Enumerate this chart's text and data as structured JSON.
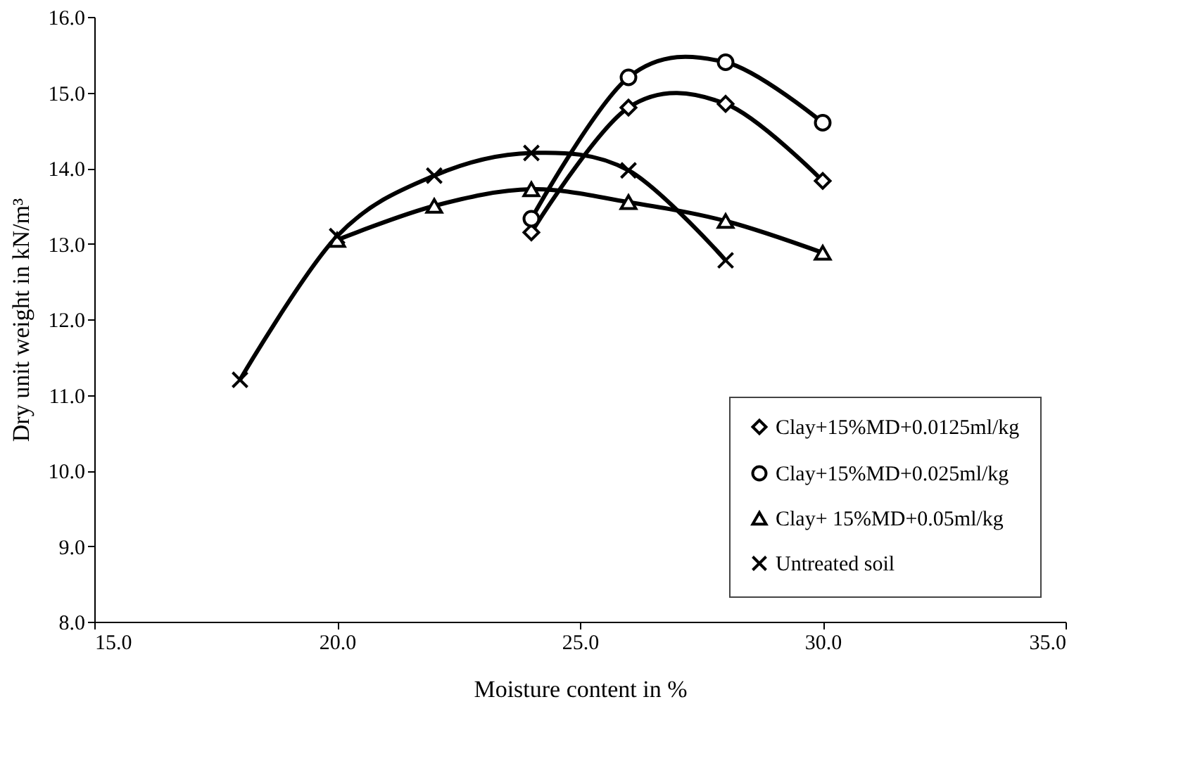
{
  "chart_data": {
    "type": "line",
    "xlabel": "Moisture content in %",
    "ylabel": "Dry unit weight in kN/m³",
    "xlim": [
      15,
      35
    ],
    "xticks": [
      {
        "value": 15,
        "label": "15.0"
      },
      {
        "value": 20,
        "label": "20.0"
      },
      {
        "value": 25,
        "label": "25.0"
      },
      {
        "value": 30,
        "label": "30.0"
      },
      {
        "value": 35,
        "label": "35.0"
      }
    ],
    "ylim": [
      8,
      16
    ],
    "yticks": [
      {
        "value": 8,
        "label": "8.0"
      },
      {
        "value": 9,
        "label": "9.0"
      },
      {
        "value": 10,
        "label": "10.0"
      },
      {
        "value": 11,
        "label": "11.0"
      },
      {
        "value": 12,
        "label": "12.0"
      },
      {
        "value": 13,
        "label": "13.0"
      },
      {
        "value": 14,
        "label": "14.0"
      },
      {
        "value": 15,
        "label": "15.0"
      },
      {
        "value": 16,
        "label": "16.0"
      }
    ],
    "grid": false,
    "legend": "bottom right",
    "line_style": "solid",
    "series": [
      {
        "name": "Clay+15%MD+0.0125ml/kg",
        "color": "#000000",
        "marker": "diamond",
        "x": [
          24,
          26,
          28,
          30
        ],
        "values": [
          13.15,
          14.8,
          14.85,
          13.83
        ]
      },
      {
        "name": "Clay+15%MD+0.025ml/kg",
        "color": "#000000",
        "marker": "circle",
        "x": [
          24,
          26,
          28,
          30
        ],
        "values": [
          13.33,
          15.2,
          15.4,
          14.6
        ]
      },
      {
        "name": "Clay+ 15%MD+0.05ml/kg",
        "color": "#000000",
        "marker": "triangle",
        "x": [
          20,
          22,
          24,
          26,
          28,
          30
        ],
        "values": [
          13.05,
          13.5,
          13.72,
          13.55,
          13.3,
          12.88
        ]
      },
      {
        "name": "Untreated soil",
        "color": "#000000",
        "marker": "cross",
        "x": [
          18,
          20,
          22,
          24,
          26,
          28
        ],
        "values": [
          11.2,
          13.1,
          13.9,
          14.2,
          13.97,
          12.78
        ]
      }
    ]
  }
}
